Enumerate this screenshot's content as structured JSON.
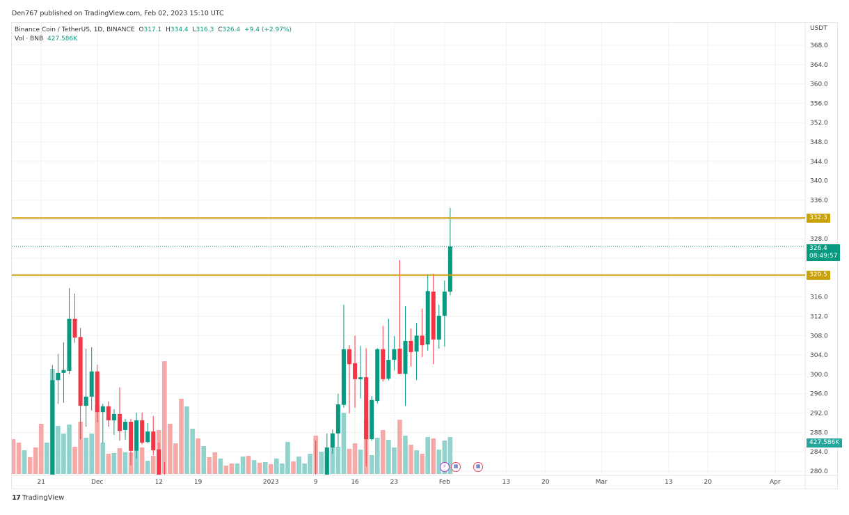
{
  "published": "Den767 published on TradingView.com, Feb 02, 2023 15:10 UTC",
  "legend": {
    "symbol": "Binance Coin / TetherUS, 1D, BINANCE",
    "o_label": "O",
    "o": "317.1",
    "h_label": "H",
    "h": "334.4",
    "l_label": "L",
    "l": "316.3",
    "c_label": "C",
    "c": "326.4",
    "change": "+9.4 (+2.97%)",
    "vol_label": "Vol · BNB",
    "vol": "427.586K"
  },
  "price_axis": {
    "currency": "USDT",
    "ticks": [
      "368.0",
      "364.0",
      "360.0",
      "356.0",
      "352.0",
      "348.0",
      "344.0",
      "340.0",
      "336.0",
      "328.0",
      "316.0",
      "312.0",
      "308.0",
      "304.0",
      "300.0",
      "296.0",
      "292.0",
      "288.0",
      "284.0",
      "280.0"
    ],
    "last_price": "326.4",
    "countdown": "08:49:57",
    "volume_last": "427.586K"
  },
  "time_axis": {
    "ticks": [
      "21",
      "Dec",
      "12",
      "19",
      "2023",
      "9",
      "16",
      "23",
      "Feb",
      "13",
      "20",
      "Mar",
      "13",
      "20",
      "Apr"
    ]
  },
  "levels": [
    {
      "value": "332.3"
    },
    {
      "value": "320.5"
    }
  ],
  "colors": {
    "up": "#089981",
    "down": "#f23645",
    "vol_up": "#92d2cc",
    "vol_down": "#f7a9a7",
    "level": "#c9a10a",
    "grid": "#f0f0f0"
  },
  "icons": [
    "flag-us-event-icon",
    "lightning-event-icon",
    "flag-us-event-icon"
  ],
  "brand": "TradingView",
  "chart_data": {
    "type": "candlestick",
    "title": "Binance Coin / TetherUS, 1D, BINANCE",
    "ylim": [
      280,
      368
    ],
    "y_unit": "USDT",
    "grid": true,
    "horizontal_lines": [
      332.3,
      320.5
    ],
    "volume_unit": "K",
    "candles": [
      {
        "d": "2022-11-16",
        "o": null,
        "h": null,
        "l": null,
        "c": null,
        "v": 403,
        "up": false
      },
      {
        "d": "2022-11-17",
        "o": null,
        "h": null,
        "l": null,
        "c": null,
        "v": 363,
        "up": false
      },
      {
        "d": "2022-11-18",
        "o": null,
        "h": null,
        "l": null,
        "c": null,
        "v": 274,
        "up": true
      },
      {
        "d": "2022-11-19",
        "o": null,
        "h": null,
        "l": null,
        "c": null,
        "v": 194,
        "up": false
      },
      {
        "d": "2022-11-20",
        "o": null,
        "h": null,
        "l": null,
        "c": null,
        "v": 307,
        "up": false
      },
      {
        "d": "2022-11-21",
        "o": null,
        "h": null,
        "l": null,
        "c": null,
        "v": 581,
        "up": false
      },
      {
        "d": "2022-11-22",
        "o": null,
        "h": null,
        "l": null,
        "c": null,
        "v": 363,
        "up": true
      },
      {
        "d": "2022-11-23",
        "o": null,
        "h": 301.9,
        "l": null,
        "c": 298.8,
        "v": 1219,
        "up": true
      },
      {
        "d": "2022-11-24",
        "o": 298.8,
        "h": 304.2,
        "l": 293.9,
        "c": 300.3,
        "v": 557,
        "up": true
      },
      {
        "d": "2022-11-25",
        "o": 300.3,
        "h": 306.6,
        "l": 294.1,
        "c": 300.9,
        "v": 468,
        "up": true
      },
      {
        "d": "2022-11-26",
        "o": 300.7,
        "h": 317.8,
        "l": 300.1,
        "c": 311.5,
        "v": 573,
        "up": true
      },
      {
        "d": "2022-11-27",
        "o": 311.5,
        "h": 316.7,
        "l": 306.5,
        "c": 307.6,
        "v": 315,
        "up": false
      },
      {
        "d": "2022-11-28",
        "o": 307.7,
        "h": 309.6,
        "l": 286.6,
        "c": 293.5,
        "v": 605,
        "up": false
      },
      {
        "d": "2022-11-29",
        "o": 293.5,
        "h": 305.3,
        "l": 289.2,
        "c": 295.4,
        "v": 420,
        "up": true
      },
      {
        "d": "2022-11-30",
        "o": 295.4,
        "h": 305.6,
        "l": 292.5,
        "c": 300.6,
        "v": 468,
        "up": true
      },
      {
        "d": "2022-12-01",
        "o": 300.6,
        "h": 302.0,
        "l": 290.1,
        "c": 292.2,
        "v": 799,
        "up": false
      },
      {
        "d": "2022-12-02",
        "o": 292.2,
        "h": 293.9,
        "l": 285.8,
        "c": 293.4,
        "v": 363,
        "up": true
      },
      {
        "d": "2022-12-03",
        "o": 293.4,
        "h": 294.4,
        "l": 289.2,
        "c": 290.5,
        "v": 234,
        "up": false
      },
      {
        "d": "2022-12-04",
        "o": 290.5,
        "h": 292.8,
        "l": 287.5,
        "c": 291.8,
        "v": 242,
        "up": true
      },
      {
        "d": "2022-12-05",
        "o": 291.8,
        "h": 297.3,
        "l": 286.3,
        "c": 288.3,
        "v": 299,
        "up": false
      },
      {
        "d": "2022-12-06",
        "o": 288.5,
        "h": 290.8,
        "l": 286.5,
        "c": 290.2,
        "v": 250,
        "up": true
      },
      {
        "d": "2022-12-07",
        "o": 290.2,
        "h": 290.8,
        "l": 281.2,
        "c": 284.2,
        "v": 250,
        "up": false
      },
      {
        "d": "2022-12-08",
        "o": 284.2,
        "h": 292.1,
        "l": 282.6,
        "c": 290.5,
        "v": 266,
        "up": true
      },
      {
        "d": "2022-12-09",
        "o": 290.5,
        "h": 292.1,
        "l": 285.5,
        "c": 285.9,
        "v": 307,
        "up": false
      },
      {
        "d": "2022-12-10",
        "o": 286.0,
        "h": 289.9,
        "l": 285.8,
        "c": 288.2,
        "v": 153,
        "up": true
      },
      {
        "d": "2022-12-11",
        "o": 288.2,
        "h": 291.4,
        "l": 283.3,
        "c": 284.3,
        "v": 210,
        "up": false
      },
      {
        "d": "2022-12-12",
        "o": 284.5,
        "h": 285.9,
        "l": null,
        "c": null,
        "v": 508,
        "up": false
      },
      {
        "d": "2022-12-13",
        "o": null,
        "h": 281.9,
        "l": null,
        "c": null,
        "v": 1307,
        "up": false
      },
      {
        "d": "2022-12-14",
        "o": null,
        "h": null,
        "l": null,
        "c": null,
        "v": 581,
        "up": false
      },
      {
        "d": "2022-12-15",
        "o": null,
        "h": null,
        "l": null,
        "c": null,
        "v": 355,
        "up": false
      },
      {
        "d": "2022-12-16",
        "o": null,
        "h": null,
        "l": null,
        "c": null,
        "v": 872,
        "up": false
      },
      {
        "d": "2022-12-17",
        "o": null,
        "h": null,
        "l": null,
        "c": null,
        "v": 783,
        "up": true
      },
      {
        "d": "2022-12-18",
        "o": null,
        "h": null,
        "l": null,
        "c": null,
        "v": 525,
        "up": true
      },
      {
        "d": "2022-12-19",
        "o": null,
        "h": null,
        "l": null,
        "c": null,
        "v": 412,
        "up": false
      },
      {
        "d": "2022-12-20",
        "o": null,
        "h": null,
        "l": null,
        "c": null,
        "v": 323,
        "up": true
      },
      {
        "d": "2022-12-21",
        "o": null,
        "h": null,
        "l": null,
        "c": null,
        "v": 194,
        "up": false
      },
      {
        "d": "2022-12-22",
        "o": null,
        "h": null,
        "l": null,
        "c": null,
        "v": 250,
        "up": false
      },
      {
        "d": "2022-12-23",
        "o": null,
        "h": null,
        "l": null,
        "c": null,
        "v": 178,
        "up": true
      },
      {
        "d": "2022-12-24",
        "o": null,
        "h": null,
        "l": null,
        "c": null,
        "v": 97,
        "up": false
      },
      {
        "d": "2022-12-25",
        "o": null,
        "h": null,
        "l": null,
        "c": null,
        "v": 121,
        "up": false
      },
      {
        "d": "2022-12-26",
        "o": null,
        "h": null,
        "l": null,
        "c": null,
        "v": 121,
        "up": true
      },
      {
        "d": "2022-12-27",
        "o": null,
        "h": null,
        "l": null,
        "c": null,
        "v": 202,
        "up": true
      },
      {
        "d": "2022-12-28",
        "o": null,
        "h": null,
        "l": null,
        "c": null,
        "v": 210,
        "up": false
      },
      {
        "d": "2022-12-29",
        "o": null,
        "h": null,
        "l": null,
        "c": null,
        "v": 161,
        "up": true
      },
      {
        "d": "2022-12-30",
        "o": null,
        "h": null,
        "l": null,
        "c": null,
        "v": 129,
        "up": false
      },
      {
        "d": "2022-12-31",
        "o": null,
        "h": null,
        "l": null,
        "c": null,
        "v": 137,
        "up": true
      },
      {
        "d": "2023-01-01",
        "o": null,
        "h": null,
        "l": null,
        "c": null,
        "v": 113,
        "up": false
      },
      {
        "d": "2023-01-02",
        "o": null,
        "h": null,
        "l": null,
        "c": null,
        "v": 178,
        "up": true
      },
      {
        "d": "2023-01-03",
        "o": null,
        "h": null,
        "l": null,
        "c": null,
        "v": 121,
        "up": true
      },
      {
        "d": "2023-01-04",
        "o": null,
        "h": null,
        "l": null,
        "c": null,
        "v": 371,
        "up": true
      },
      {
        "d": "2023-01-05",
        "o": null,
        "h": null,
        "l": null,
        "c": null,
        "v": 145,
        "up": false
      },
      {
        "d": "2023-01-06",
        "o": null,
        "h": null,
        "l": null,
        "c": null,
        "v": 202,
        "up": true
      },
      {
        "d": "2023-01-07",
        "o": null,
        "h": null,
        "l": null,
        "c": null,
        "v": 121,
        "up": true
      },
      {
        "d": "2023-01-08",
        "o": null,
        "h": null,
        "l": null,
        "c": null,
        "v": 234,
        "up": true
      },
      {
        "d": "2023-01-09",
        "o": null,
        "h": 286.3,
        "l": null,
        "c": null,
        "v": 444,
        "up": false
      },
      {
        "d": "2023-01-10",
        "o": null,
        "h": null,
        "l": null,
        "c": null,
        "v": 258,
        "up": true
      },
      {
        "d": "2023-01-11",
        "o": null,
        "h": 287.8,
        "l": null,
        "c": 284.9,
        "v": 282,
        "up": true
      },
      {
        "d": "2023-01-12",
        "o": 284.9,
        "h": 288.6,
        "l": 283.6,
        "c": 287.8,
        "v": 307,
        "up": true
      },
      {
        "d": "2023-01-13",
        "o": 287.8,
        "h": 296.0,
        "l": 284.9,
        "c": 293.8,
        "v": 315,
        "up": true
      },
      {
        "d": "2023-01-14",
        "o": 293.7,
        "h": 314.4,
        "l": 293.1,
        "c": 305.2,
        "v": 710,
        "up": true
      },
      {
        "d": "2023-01-15",
        "o": 305.2,
        "h": 306.0,
        "l": 291.9,
        "c": 302.1,
        "v": 291,
        "up": false
      },
      {
        "d": "2023-01-16",
        "o": 302.3,
        "h": 308.0,
        "l": 293.1,
        "c": 299.0,
        "v": 355,
        "up": false
      },
      {
        "d": "2023-01-17",
        "o": 299.0,
        "h": 305.9,
        "l": 295.0,
        "c": 299.4,
        "v": 282,
        "up": true
      },
      {
        "d": "2023-01-18",
        "o": 299.4,
        "h": 305.4,
        "l": 281.0,
        "c": 286.6,
        "v": 629,
        "up": false
      },
      {
        "d": "2023-01-19",
        "o": 286.6,
        "h": 295.5,
        "l": 286.3,
        "c": 294.7,
        "v": 218,
        "up": true
      },
      {
        "d": "2023-01-20",
        "o": 294.5,
        "h": 305.4,
        "l": 294.0,
        "c": 305.2,
        "v": 420,
        "up": true
      },
      {
        "d": "2023-01-21",
        "o": 305.2,
        "h": 310.0,
        "l": 298.5,
        "c": 299.0,
        "v": 508,
        "up": false
      },
      {
        "d": "2023-01-22",
        "o": 299.1,
        "h": 311.5,
        "l": 298.7,
        "c": 303.0,
        "v": 395,
        "up": true
      },
      {
        "d": "2023-01-23",
        "o": 303.0,
        "h": 307.9,
        "l": 300.8,
        "c": 305.2,
        "v": 307,
        "up": true
      },
      {
        "d": "2023-01-24",
        "o": 305.3,
        "h": 323.6,
        "l": 300.1,
        "c": 300.1,
        "v": 629,
        "up": false
      },
      {
        "d": "2023-01-25",
        "o": 300.1,
        "h": 314.1,
        "l": 293.5,
        "c": 306.9,
        "v": 444,
        "up": true
      },
      {
        "d": "2023-01-26",
        "o": 306.9,
        "h": 309.5,
        "l": 301.6,
        "c": 304.6,
        "v": 339,
        "up": false
      },
      {
        "d": "2023-01-27",
        "o": 304.7,
        "h": 310.6,
        "l": 298.8,
        "c": 308.0,
        "v": 274,
        "up": true
      },
      {
        "d": "2023-01-28",
        "o": 308.0,
        "h": 313.6,
        "l": 303.6,
        "c": 306.0,
        "v": 234,
        "up": false
      },
      {
        "d": "2023-01-29",
        "o": 306.2,
        "h": 320.7,
        "l": 304.9,
        "c": 317.2,
        "v": 428,
        "up": true
      },
      {
        "d": "2023-01-30",
        "o": 317.1,
        "h": 320.8,
        "l": 302.1,
        "c": 307.2,
        "v": 412,
        "up": false
      },
      {
        "d": "2023-01-31",
        "o": 307.2,
        "h": 314.4,
        "l": 305.3,
        "c": 312.1,
        "v": 282,
        "up": true
      },
      {
        "d": "2023-02-01",
        "o": 312.1,
        "h": 319.4,
        "l": 305.7,
        "c": 317.1,
        "v": 387,
        "up": true
      },
      {
        "d": "2023-02-02",
        "o": 317.1,
        "h": 334.4,
        "l": 316.3,
        "c": 326.4,
        "v": 427.586,
        "up": true
      }
    ]
  }
}
